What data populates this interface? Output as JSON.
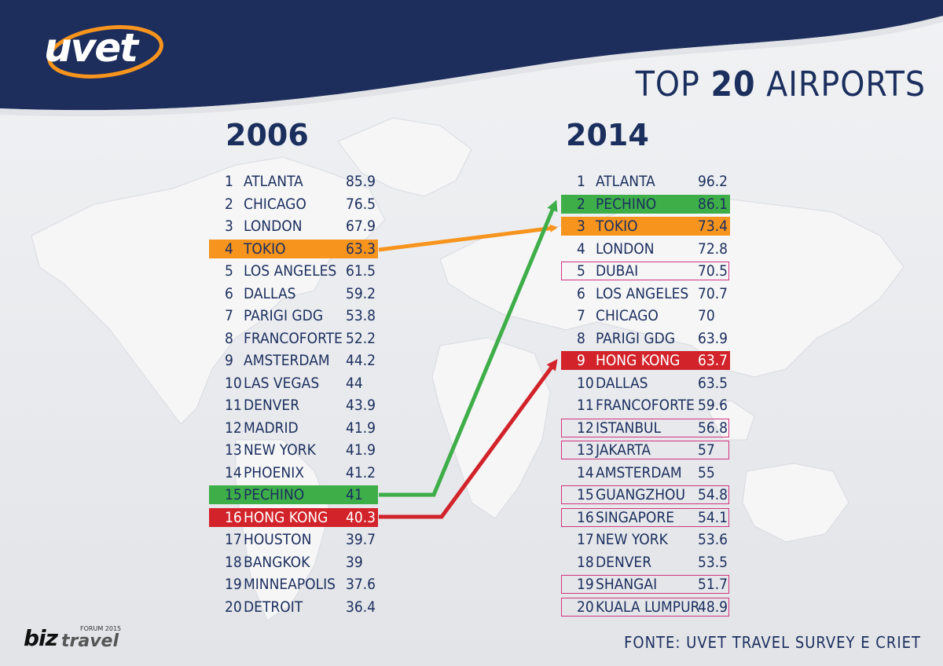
{
  "brand": {
    "logo_text": "uvet"
  },
  "title": {
    "prefix": "TOP ",
    "number": "20",
    "suffix": " AIRPORTS"
  },
  "left": {
    "year": "2006",
    "rows": [
      {
        "rank": "1",
        "city": "ATLANTA",
        "value": "85.9"
      },
      {
        "rank": "2",
        "city": "CHICAGO",
        "value": "76.5"
      },
      {
        "rank": "3",
        "city": "LONDON",
        "value": "67.9"
      },
      {
        "rank": "4",
        "city": "TOKIO",
        "value": "63.3",
        "highlight": "orange"
      },
      {
        "rank": "5",
        "city": "LOS ANGELES",
        "value": "61.5"
      },
      {
        "rank": "6",
        "city": "DALLAS",
        "value": "59.2"
      },
      {
        "rank": "7",
        "city": "PARIGI GDG",
        "value": "53.8"
      },
      {
        "rank": "8",
        "city": "FRANCOFORTE",
        "value": "52.2"
      },
      {
        "rank": "9",
        "city": "AMSTERDAM",
        "value": "44.2"
      },
      {
        "rank": "10",
        "city": "LAS VEGAS",
        "value": "44"
      },
      {
        "rank": "11",
        "city": "DENVER",
        "value": "43.9"
      },
      {
        "rank": "12",
        "city": "MADRID",
        "value": "41.9"
      },
      {
        "rank": "13",
        "city": "NEW YORK",
        "value": "41.9"
      },
      {
        "rank": "14",
        "city": "PHOENIX",
        "value": "41.2"
      },
      {
        "rank": "15",
        "city": "PECHINO",
        "value": "41",
        "highlight": "green"
      },
      {
        "rank": "16",
        "city": "HONG KONG",
        "value": "40.3",
        "highlight": "red"
      },
      {
        "rank": "17",
        "city": "HOUSTON",
        "value": "39.7"
      },
      {
        "rank": "18",
        "city": "BANGKOK",
        "value": "39"
      },
      {
        "rank": "19",
        "city": "MINNEAPOLIS",
        "value": "37.6"
      },
      {
        "rank": "20",
        "city": "DETROIT",
        "value": "36.4"
      }
    ]
  },
  "right": {
    "year": "2014",
    "rows": [
      {
        "rank": "1",
        "city": "ATLANTA",
        "value": "96.2"
      },
      {
        "rank": "2",
        "city": "PECHINO",
        "value": "86.1",
        "highlight": "green"
      },
      {
        "rank": "3",
        "city": "TOKIO",
        "value": "73.4",
        "highlight": "orange"
      },
      {
        "rank": "4",
        "city": "LONDON",
        "value": "72.8"
      },
      {
        "rank": "5",
        "city": "DUBAI",
        "value": "70.5",
        "highlight": "box"
      },
      {
        "rank": "6",
        "city": "LOS ANGELES",
        "value": "70.7"
      },
      {
        "rank": "7",
        "city": "CHICAGO",
        "value": "70"
      },
      {
        "rank": "8",
        "city": "PARIGI GDG",
        "value": "63.9"
      },
      {
        "rank": "9",
        "city": "HONG KONG",
        "value": "63.7",
        "highlight": "red"
      },
      {
        "rank": "10",
        "city": "DALLAS",
        "value": "63.5"
      },
      {
        "rank": "11",
        "city": "FRANCOFORTE",
        "value": "59.6"
      },
      {
        "rank": "12",
        "city": "ISTANBUL",
        "value": "56.8",
        "highlight": "box"
      },
      {
        "rank": "13",
        "city": "JAKARTA",
        "value": "57",
        "highlight": "box"
      },
      {
        "rank": "14",
        "city": "AMSTERDAM",
        "value": "55"
      },
      {
        "rank": "15",
        "city": "GUANGZHOU",
        "value": "54.8",
        "highlight": "box"
      },
      {
        "rank": "16",
        "city": "SINGAPORE",
        "value": "54.1",
        "highlight": "box"
      },
      {
        "rank": "17",
        "city": "NEW YORK",
        "value": "53.6"
      },
      {
        "rank": "18",
        "city": "DENVER",
        "value": "53.5"
      },
      {
        "rank": "19",
        "city": "SHANGAI",
        "value": "51.7",
        "highlight": "box"
      },
      {
        "rank": "20",
        "city": "KUALA LUMPUR",
        "value": "48.9",
        "highlight": "box"
      }
    ]
  },
  "source": "FONTE: UVET TRAVEL SURVEY E CRIET",
  "sponsor": {
    "main": "biz",
    "sub": "travel",
    "tag": "FORUM 2015"
  },
  "colors": {
    "navy": "#1b2f5e",
    "orange": "#f7941d",
    "green": "#3eae49",
    "red": "#d2232a",
    "box": "#d1347f"
  }
}
